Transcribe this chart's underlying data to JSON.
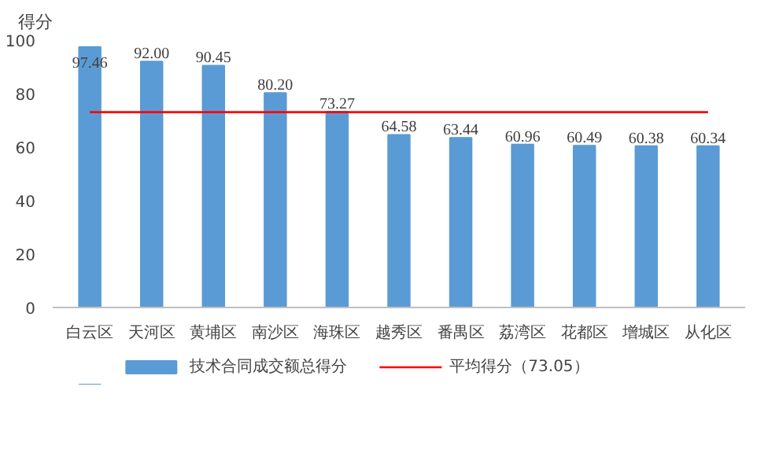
{
  "chart_data": {
    "type": "bar",
    "ylabel": "得分",
    "categories": [
      "白云区",
      "天河区",
      "黄埔区",
      "南沙区",
      "海珠区",
      "越秀区",
      "番禺区",
      "荔湾区",
      "花都区",
      "增城区",
      "从化区"
    ],
    "series": [
      {
        "name": "技术合同成交额总得分",
        "color": "#5b9bd5",
        "values": [
          97.46,
          92.0,
          90.45,
          80.2,
          73.27,
          64.58,
          63.44,
          60.96,
          60.49,
          60.38,
          60.34
        ],
        "value_labels": [
          "97.46",
          "92.00",
          "90.45",
          "80.20",
          "73.27",
          "64.58",
          "63.44",
          "60.96",
          "60.49",
          "60.38",
          "60.34"
        ]
      }
    ],
    "ylim": [
      0,
      100
    ],
    "yticks": [
      0,
      20,
      40,
      60,
      80,
      100
    ],
    "grid": false,
    "legend": "bottom",
    "ref_lines": [
      {
        "axis": "y",
        "value": 73.05,
        "label": "平均得分（73.05）",
        "color": "#ff0000"
      }
    ]
  }
}
